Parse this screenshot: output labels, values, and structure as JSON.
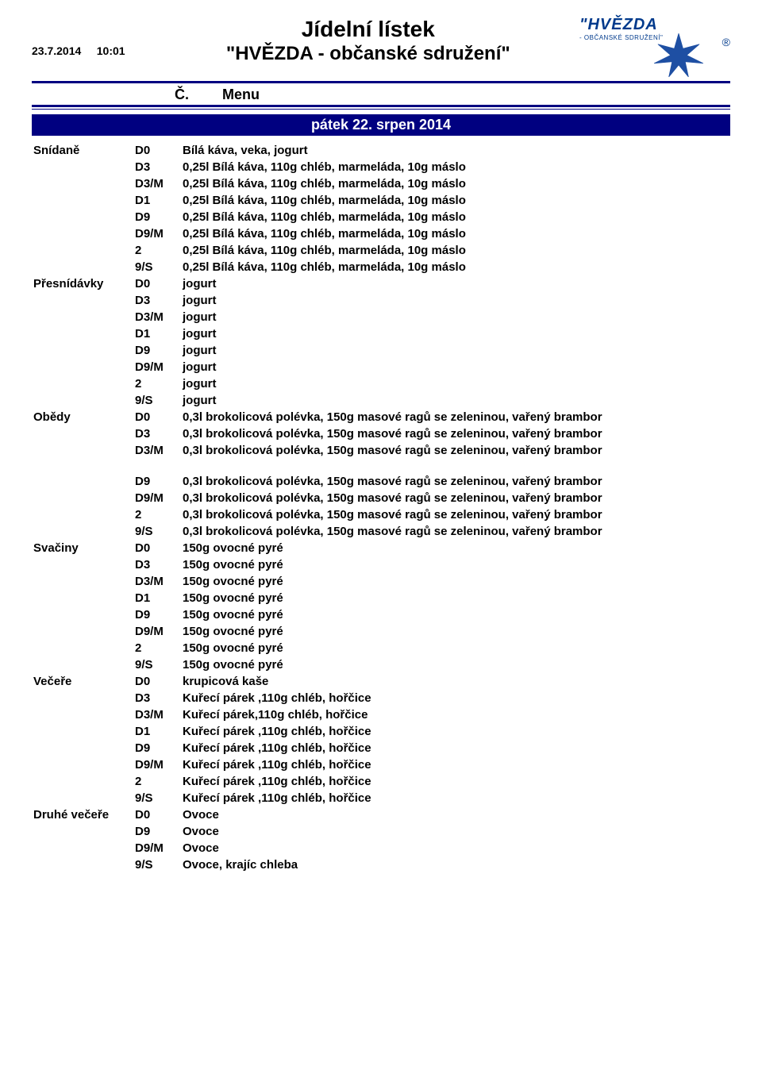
{
  "header": {
    "date": "23.7.2014",
    "time": "10:01",
    "title_line1": "Jídelní lístek",
    "title_line2": "\"HVĚZDA - občanské sdružení\"",
    "col_c": "Č.",
    "col_menu": "Menu",
    "logo_main": "\"HVĚZDA",
    "logo_sub": "- OBČANSKÉ SDRUŽENÍ\"",
    "logo_color": "#003a8c",
    "rule_color": "#000080"
  },
  "banner": {
    "text": "pátek  22. srpen 2014",
    "bg": "#000080",
    "fg": "#ffffff"
  },
  "sections": [
    {
      "name": "Snídaně",
      "rows": [
        {
          "code": "D0",
          "desc": "Bílá káva, veka,  jogurt"
        },
        {
          "code": "D3",
          "desc": "0,25l Bílá káva, 110g chléb, marmeláda, 10g máslo"
        },
        {
          "code": "D3/M",
          "desc": "0,25l Bílá káva, 110g chléb, marmeláda, 10g máslo"
        },
        {
          "code": "D1",
          "desc": "0,25l Bílá káva, 110g chléb, marmeláda, 10g máslo"
        },
        {
          "code": "D9",
          "desc": "0,25l Bílá káva, 110g chléb, marmeláda, 10g máslo"
        },
        {
          "code": "D9/M",
          "desc": "0,25l Bílá káva, 110g chléb, marmeláda, 10g máslo"
        },
        {
          "code": "2",
          "desc": "0,25l Bílá káva, 110g chléb, marmeláda, 10g máslo"
        },
        {
          "code": "9/S",
          "desc": "0,25l Bílá káva, 110g chléb, marmeláda, 10g máslo"
        }
      ]
    },
    {
      "name": "Přesnídávky",
      "rows": [
        {
          "code": "D0",
          "desc": "jogurt"
        },
        {
          "code": "D3",
          "desc": "jogurt"
        },
        {
          "code": "D3/M",
          "desc": "jogurt"
        },
        {
          "code": "D1",
          "desc": "jogurt"
        },
        {
          "code": "D9",
          "desc": "jogurt"
        },
        {
          "code": "D9/M",
          "desc": "jogurt"
        },
        {
          "code": "2",
          "desc": "jogurt"
        },
        {
          "code": "9/S",
          "desc": "jogurt"
        }
      ]
    },
    {
      "name": "Obědy",
      "rows": [
        {
          "code": "D0",
          "desc": "0,3l brokolicová polévka, 150g masové ragů se zeleninou, vařený brambor"
        },
        {
          "code": "D3",
          "desc": "0,3l brokolicová polévka, 150g masové ragů se zeleninou, vařený brambor"
        },
        {
          "code": "D3/M",
          "desc": "0,3l brokolicová polévka, 150g masové ragů se zeleninou, vařený brambor"
        },
        {
          "gap": true
        },
        {
          "code": "D9",
          "desc": "0,3l brokolicová polévka, 150g masové ragů se zeleninou, vařený brambor"
        },
        {
          "code": "D9/M",
          "desc": "0,3l brokolicová polévka, 150g masové ragů se zeleninou, vařený brambor"
        },
        {
          "code": "2",
          "desc": "0,3l brokolicová polévka, 150g masové ragů se zeleninou, vařený brambor"
        },
        {
          "code": "9/S",
          "desc": "0,3l brokolicová polévka, 150g masové ragů se zeleninou, vařený brambor"
        }
      ]
    },
    {
      "name": "Svačiny",
      "rows": [
        {
          "code": "D0",
          "desc": "150g ovocné pyré"
        },
        {
          "code": "D3",
          "desc": "150g ovocné pyré"
        },
        {
          "code": "D3/M",
          "desc": "150g ovocné pyré"
        },
        {
          "code": "D1",
          "desc": "150g ovocné pyré"
        },
        {
          "code": "D9",
          "desc": "150g ovocné pyré"
        },
        {
          "code": "D9/M",
          "desc": "150g ovocné pyré"
        },
        {
          "code": "2",
          "desc": "150g ovocné pyré"
        },
        {
          "code": "9/S",
          "desc": "150g ovocné pyré"
        }
      ]
    },
    {
      "name": "Večeře",
      "rows": [
        {
          "code": "D0",
          "desc": "krupicová kaše"
        },
        {
          "code": "D3",
          "desc": "Kuřecí párek ,110g chléb, hořčice"
        },
        {
          "code": "D3/M",
          "desc": "Kuřecí párek,110g chléb, hořčice"
        },
        {
          "code": "D1",
          "desc": "Kuřecí párek ,110g chléb, hořčice"
        },
        {
          "code": "D9",
          "desc": "Kuřecí párek ,110g chléb, hořčice"
        },
        {
          "code": "D9/M",
          "desc": "Kuřecí párek ,110g chléb, hořčice"
        },
        {
          "code": "2",
          "desc": "Kuřecí párek ,110g chléb, hořčice"
        },
        {
          "code": "9/S",
          "desc": "Kuřecí párek ,110g chléb, hořčice"
        }
      ]
    },
    {
      "name": "Druhé večeře",
      "rows": [
        {
          "code": "D0",
          "desc": "Ovoce"
        },
        {
          "code": "D9",
          "desc": "Ovoce"
        },
        {
          "code": "D9/M",
          "desc": "Ovoce"
        },
        {
          "code": "9/S",
          "desc": "Ovoce, krajíc chleba"
        }
      ]
    }
  ]
}
